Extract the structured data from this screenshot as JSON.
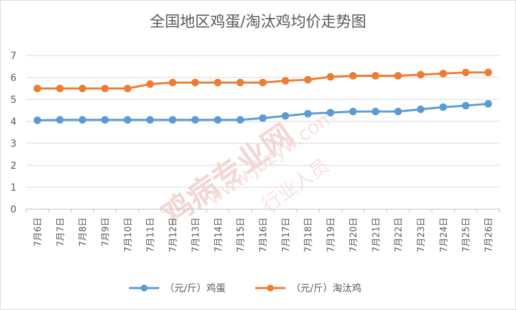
{
  "chart_data": {
    "type": "line",
    "title": "全国地区鸡蛋/淘汰鸡均价走势图",
    "xlabel": "",
    "ylabel": "",
    "ylim": [
      0,
      7
    ],
    "yticks": [
      0,
      1,
      2,
      3,
      4,
      5,
      6,
      7
    ],
    "grid": "horizontal",
    "legend_position": "bottom",
    "categories": [
      "7月6日",
      "7月7日",
      "7月8日",
      "7月9日",
      "7月10日",
      "7月11日",
      "7月12日",
      "7月13日",
      "7月14日",
      "7月15日",
      "7月16日",
      "7月17日",
      "7月18日",
      "7月19日",
      "7月20日",
      "7月21日",
      "7月22日",
      "7月23日",
      "7月24日",
      "7月25日",
      "7月26日"
    ],
    "series": [
      {
        "name": "（元/斤）鸡蛋",
        "color": "#5b9bd5",
        "values": [
          4.05,
          4.07,
          4.07,
          4.07,
          4.07,
          4.07,
          4.07,
          4.07,
          4.07,
          4.07,
          4.15,
          4.25,
          4.35,
          4.4,
          4.45,
          4.45,
          4.45,
          4.55,
          4.65,
          4.72,
          4.8
        ]
      },
      {
        "name": "（元/斤）淘汰鸡",
        "color": "#ed7d31",
        "values": [
          5.5,
          5.5,
          5.5,
          5.5,
          5.5,
          5.7,
          5.77,
          5.77,
          5.77,
          5.77,
          5.77,
          5.85,
          5.9,
          6.03,
          6.08,
          6.08,
          6.08,
          6.13,
          6.18,
          6.23,
          6.23
        ]
      }
    ]
  },
  "watermark": {
    "text1": "鸡病专业网",
    "text2": "www.jbzyw.com",
    "text3": "行业人员"
  }
}
